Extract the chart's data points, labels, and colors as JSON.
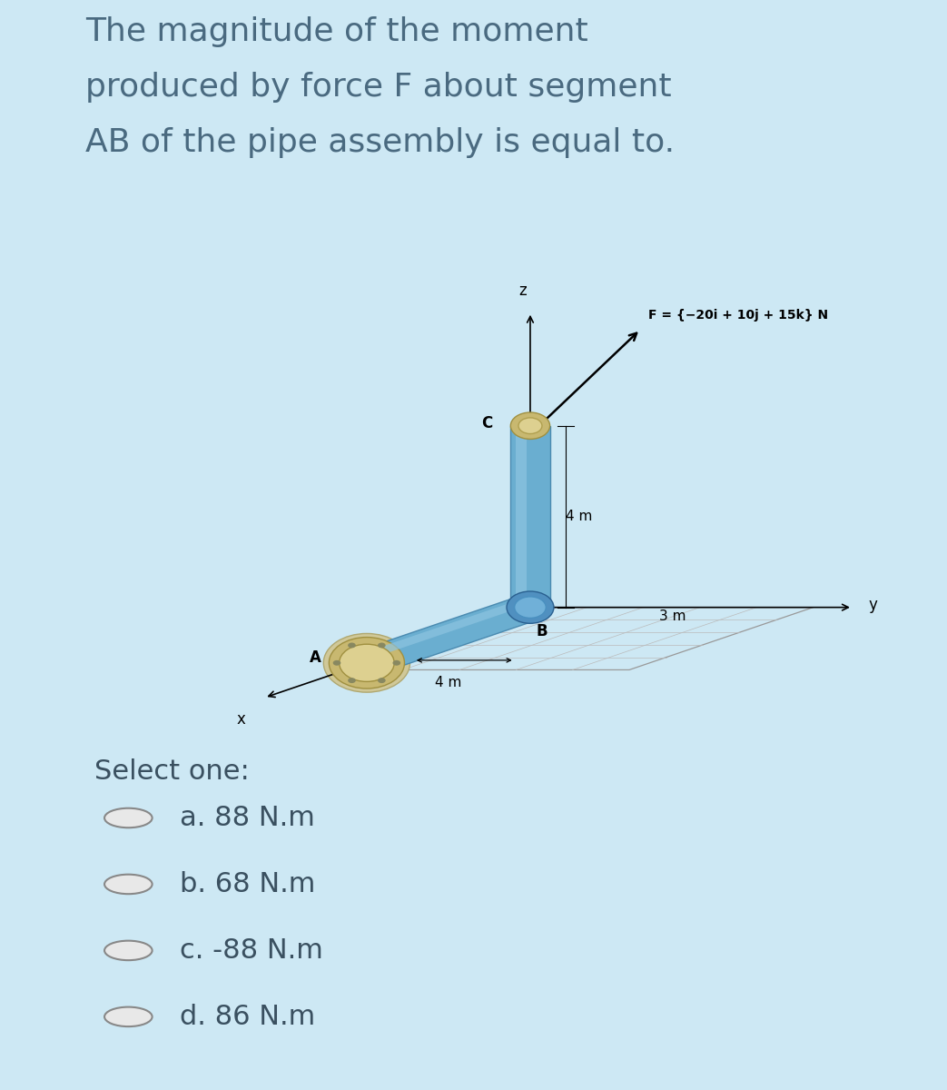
{
  "bg_color": "#cde8f4",
  "title_lines": [
    "The magnitude of the moment",
    "produced by force F about segment",
    "AB of the pipe assembly is equal to."
  ],
  "title_fontsize": 26,
  "title_color": "#4a6a80",
  "diagram_bg": "#ffffff",
  "force_label": "F = {−20i + 10j + 15k} N",
  "dim_4m_vert": "4 m",
  "dim_3m": "3 m",
  "dim_4m_horiz": "4 m",
  "label_A": "A",
  "label_B": "B",
  "label_C": "C",
  "label_x": "x",
  "label_y": "y",
  "label_z": "z",
  "pipe_color_light": "#8dc4e0",
  "pipe_color_mid": "#6aaed0",
  "pipe_color_dark": "#4a8ab0",
  "connector_gold": "#c8b870",
  "connector_gold_dark": "#a09040",
  "connector_gold_light": "#ddd090",
  "connector_blue": "#5090c0",
  "select_one_text": "Select one:",
  "options": [
    "a. 88 N.m",
    "b. 68 N.m",
    "c. -88 N.m",
    "d. 86 N.m"
  ],
  "option_fontsize": 22,
  "select_fontsize": 22,
  "radio_fill": "#e8e8e8",
  "radio_edge": "#888888",
  "text_dark": "#3a5060"
}
